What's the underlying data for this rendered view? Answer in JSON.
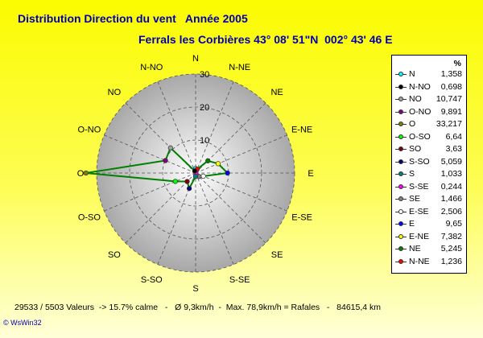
{
  "header": {
    "title": "Distribution Direction du vent   Année 2005",
    "subtitle": "Ferrals les Corbières 43° 08' 51\"N  002° 43' 46 E"
  },
  "chart_data": {
    "type": "polar-line",
    "directions": [
      "N",
      "N-NE",
      "NE",
      "E-NE",
      "E",
      "E-SE",
      "SE",
      "S-SE",
      "S",
      "S-SO",
      "SO",
      "O-SO",
      "O",
      "O-NO",
      "NO",
      "N-NO"
    ],
    "legend_order": [
      "N",
      "N-NO",
      "NO",
      "O-NO",
      "O",
      "O-SO",
      "SO",
      "S-SO",
      "S",
      "S-SE",
      "SE",
      "E-SE",
      "E",
      "E-NE",
      "NE",
      "N-NE"
    ],
    "legend_header": "%",
    "values": {
      "N": "1,358",
      "N-NO": "0,698",
      "NO": "10,747",
      "O-NO": "9,891",
      "O": "33,217",
      "O-SO": "6,64",
      "SO": "3,63",
      "S-SO": "5,059",
      "S": "1,033",
      "S-SE": "0,244",
      "SE": "1,466",
      "E-SE": "2,506",
      "E": "9,65",
      "E-NE": "7,382",
      "NE": "5,245",
      "N-NE": "1,236"
    },
    "colors": {
      "N": "#00ffff",
      "N-NO": "#000000",
      "NO": "#a0a0a0",
      "O-NO": "#800080",
      "O": "#808000",
      "O-SO": "#00ff00",
      "SO": "#800000",
      "S-SO": "#000080",
      "S": "#008080",
      "S-SE": "#ff00ff",
      "SE": "#808080",
      "E-SE": "#ffffff",
      "E": "#0000ff",
      "E-NE": "#ffff00",
      "NE": "#008000",
      "N-NE": "#ff0000"
    },
    "line_color": "#008000",
    "radial_ticks": [
      10,
      20,
      30
    ],
    "rmax": 33.217
  },
  "footer": {
    "stats": "29533 / 5503 Valeurs  -> 15.7% calme   -   Ø 9,3km/h  -  Max. 78,9km/h = Rafales   -   84615,4 km",
    "credit": "© WsWin32"
  }
}
